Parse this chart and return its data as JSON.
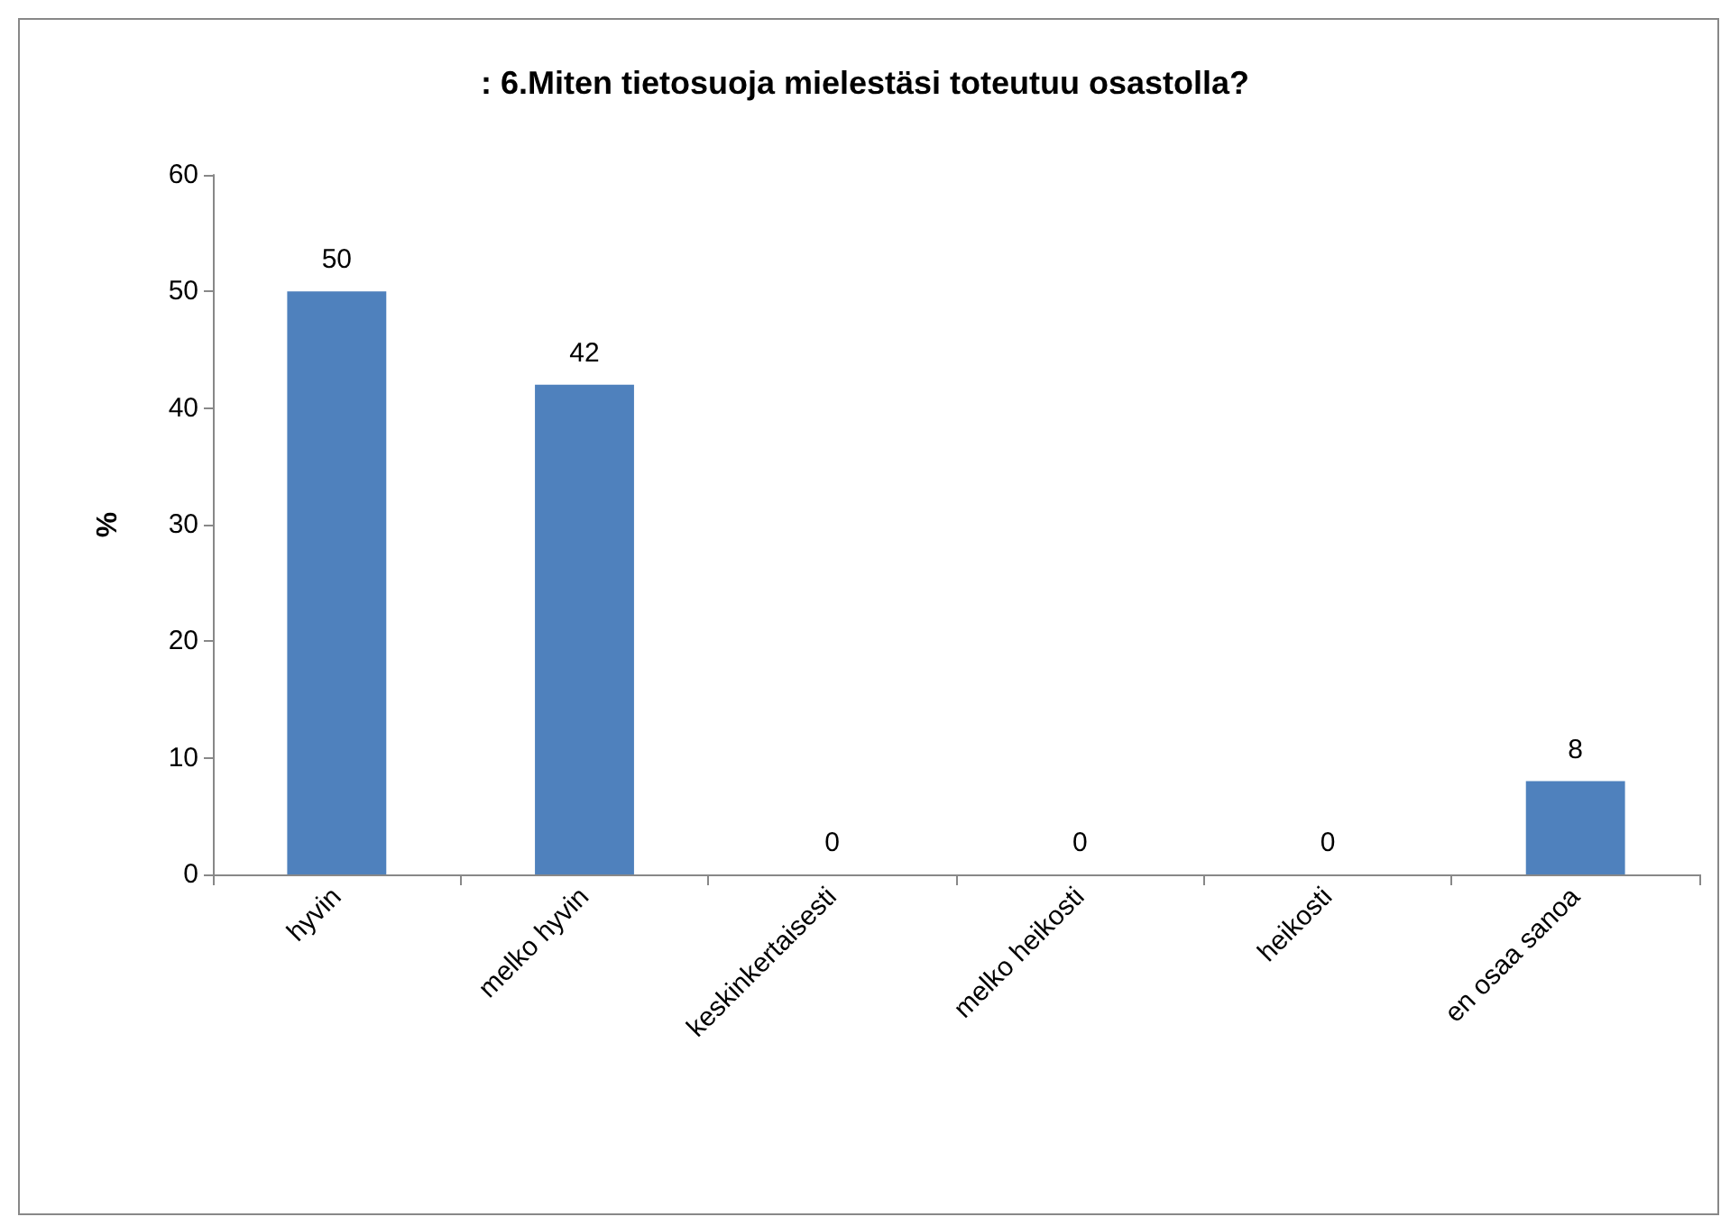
{
  "chart_data": {
    "type": "bar",
    "title": ": 6.Miten tietosuoja mielestäsi toteutuu osastolla?",
    "ylabel": "%",
    "categories": [
      "hyvin",
      "melko hyvin",
      "keskinkertaisesti",
      "melko heikosti",
      "heikosti",
      "en osaa sanoa"
    ],
    "values": [
      50,
      42,
      0,
      0,
      0,
      8
    ],
    "color": "#4f81bd",
    "ylim": [
      0,
      60
    ],
    "yticks": [
      0,
      10,
      20,
      30,
      40,
      50,
      60
    ],
    "grid": false,
    "data_labels": true
  }
}
